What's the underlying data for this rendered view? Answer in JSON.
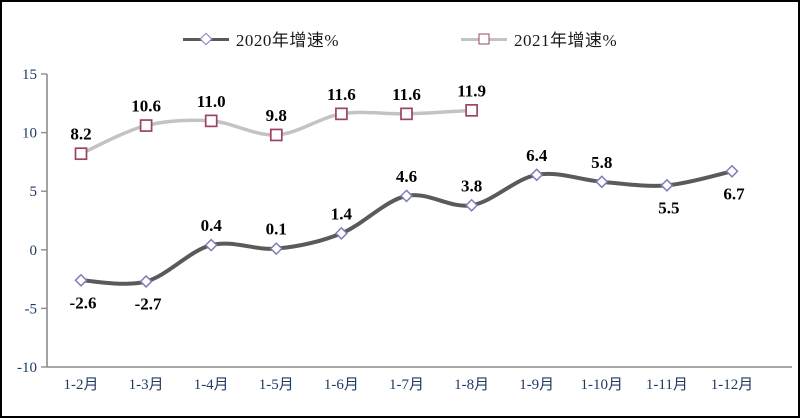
{
  "chart_data": {
    "type": "line",
    "title": "",
    "xlabel": "",
    "ylabel": "",
    "categories": [
      "1-2月",
      "1-3月",
      "1-4月",
      "1-5月",
      "1-6月",
      "1-7月",
      "1-8月",
      "1-9月",
      "1-10月",
      "1-11月",
      "1-12月"
    ],
    "series": [
      {
        "name": "2020年增速%",
        "marker": "diamond",
        "line_color": "#5a5a5a",
        "marker_color": "#7d7db8",
        "values": [
          -2.6,
          -2.7,
          0.4,
          0.1,
          1.4,
          4.6,
          3.8,
          6.4,
          5.8,
          5.5,
          6.7
        ],
        "value_labels": [
          "-2.6",
          "-2.7",
          "0.4",
          "0.1",
          "1.4",
          "4.6",
          "3.8",
          "6.4",
          "5.8",
          "5.5",
          "6.7"
        ],
        "label_placement": [
          "below",
          "below",
          "above",
          "above",
          "above",
          "above",
          "above",
          "above",
          "above",
          "below",
          "below"
        ]
      },
      {
        "name": "2021年增速%",
        "marker": "square",
        "line_color": "#c3c3c3",
        "marker_color": "#9d4168",
        "values": [
          8.2,
          10.6,
          11.0,
          9.8,
          11.6,
          11.6,
          11.9
        ],
        "value_labels": [
          "8.2",
          "10.6",
          "11.0",
          "9.8",
          "11.6",
          "11.6",
          "11.9"
        ],
        "label_placement": [
          "above",
          "above",
          "above",
          "above",
          "above",
          "above",
          "above"
        ]
      }
    ],
    "ylim": [
      -10,
      15
    ],
    "yticks": [
      "15",
      "10",
      "5",
      "0",
      "-5",
      "-10"
    ],
    "ytick_values": [
      15,
      10,
      5,
      0,
      -5,
      -10
    ],
    "grid": false,
    "legend_position": "top-center",
    "colors": {
      "axis_line": "#8c8c8c",
      "axis_label": "#1f3a63",
      "data_label": "#000000",
      "background": "#ffffff",
      "figure_border": "#000000"
    }
  }
}
